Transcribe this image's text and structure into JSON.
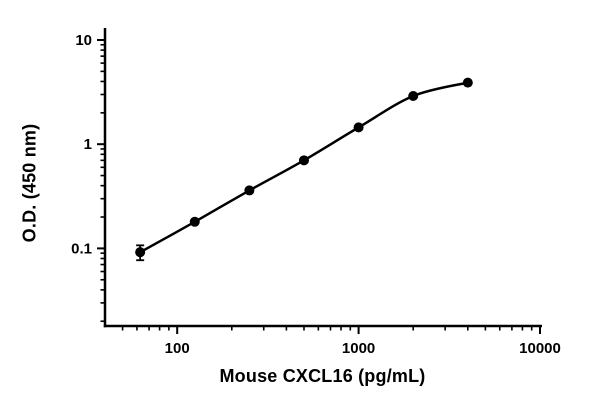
{
  "chart_data": {
    "type": "scatter",
    "title": "",
    "xlabel": "Mouse CXCL16 (pg/mL)",
    "ylabel": "O.D. (450 nm)",
    "x_scale": "log",
    "y_scale": "log",
    "xlim": [
      40,
      10000
    ],
    "ylim": [
      0.018,
      10
    ],
    "grid": false,
    "legend": "none",
    "line_color": "#000000",
    "point_color": "#000000",
    "x_major_ticks": [
      {
        "v": 100,
        "label": "100"
      },
      {
        "v": 1000,
        "label": "1000"
      },
      {
        "v": 10000,
        "label": "10000"
      }
    ],
    "x_minor_ticks": [
      50,
      60,
      70,
      80,
      90,
      200,
      300,
      400,
      500,
      600,
      700,
      800,
      900,
      2000,
      3000,
      4000,
      5000,
      6000,
      7000,
      8000,
      9000
    ],
    "y_major_ticks": [
      {
        "v": 0.1,
        "label": "0.1"
      },
      {
        "v": 1,
        "label": "1"
      },
      {
        "v": 10,
        "label": "10"
      }
    ],
    "y_minor_ticks": [
      0.02,
      0.03,
      0.04,
      0.05,
      0.06,
      0.07,
      0.08,
      0.09,
      0.2,
      0.3,
      0.4,
      0.5,
      0.6,
      0.7,
      0.8,
      0.9,
      2,
      3,
      4,
      5,
      6,
      7,
      8,
      9
    ],
    "points": [
      {
        "x": 62.5,
        "y": 0.092,
        "err": 0.015
      },
      {
        "x": 125,
        "y": 0.18,
        "err": 0.008
      },
      {
        "x": 250,
        "y": 0.36,
        "err": 0.012
      },
      {
        "x": 500,
        "y": 0.7,
        "err": 0.02
      },
      {
        "x": 1000,
        "y": 1.45,
        "err": 0.04
      },
      {
        "x": 2000,
        "y": 2.9,
        "err": 0.07
      },
      {
        "x": 4000,
        "y": 3.9,
        "err": 0.08
      }
    ]
  }
}
